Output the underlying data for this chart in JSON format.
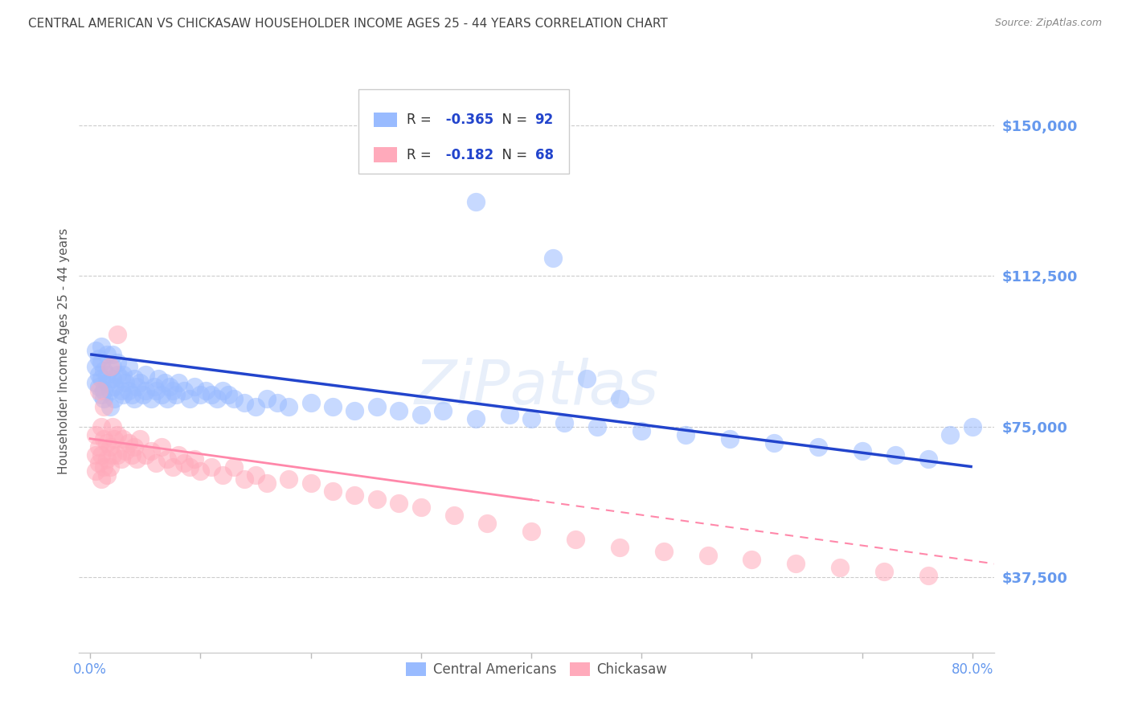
{
  "title": "CENTRAL AMERICAN VS CHICKASAW HOUSEHOLDER INCOME AGES 25 - 44 YEARS CORRELATION CHART",
  "source": "Source: ZipAtlas.com",
  "ylabel": "Householder Income Ages 25 - 44 years",
  "xlabel_ticks": [
    "0.0%",
    "",
    "",
    "",
    "",
    "",
    "",
    "",
    "80.0%"
  ],
  "xlabel_vals": [
    0.0,
    0.1,
    0.2,
    0.3,
    0.4,
    0.5,
    0.6,
    0.7,
    0.8
  ],
  "ytick_labels": [
    "$37,500",
    "$75,000",
    "$112,500",
    "$150,000"
  ],
  "ytick_vals": [
    37500,
    75000,
    112500,
    150000
  ],
  "ylim": [
    18750,
    168750
  ],
  "xlim": [
    -0.01,
    0.82
  ],
  "blue_color": "#99bbff",
  "pink_color": "#ffaabb",
  "blue_line_color": "#2244cc",
  "pink_line_color": "#ff88aa",
  "title_color": "#333333",
  "axis_label_color": "#6699ee",
  "legend_R1": "-0.365",
  "legend_N1": "92",
  "legend_R2": "-0.182",
  "legend_N2": "68",
  "blue_intercept": 93000,
  "blue_slope_per_unit": -35000,
  "pink_intercept": 72000,
  "pink_slope_per_unit": -38000,
  "blue_x": [
    0.005,
    0.005,
    0.005,
    0.008,
    0.008,
    0.008,
    0.01,
    0.01,
    0.01,
    0.01,
    0.012,
    0.012,
    0.012,
    0.015,
    0.015,
    0.015,
    0.018,
    0.018,
    0.02,
    0.02,
    0.02,
    0.022,
    0.022,
    0.025,
    0.025,
    0.028,
    0.028,
    0.03,
    0.03,
    0.032,
    0.035,
    0.035,
    0.038,
    0.04,
    0.04,
    0.042,
    0.045,
    0.048,
    0.05,
    0.05,
    0.055,
    0.058,
    0.06,
    0.062,
    0.065,
    0.068,
    0.07,
    0.072,
    0.075,
    0.078,
    0.08,
    0.085,
    0.09,
    0.095,
    0.1,
    0.105,
    0.11,
    0.115,
    0.12,
    0.125,
    0.13,
    0.14,
    0.15,
    0.16,
    0.17,
    0.18,
    0.2,
    0.22,
    0.24,
    0.26,
    0.28,
    0.3,
    0.32,
    0.35,
    0.38,
    0.4,
    0.43,
    0.46,
    0.5,
    0.54,
    0.58,
    0.62,
    0.66,
    0.7,
    0.73,
    0.76,
    0.78,
    0.8,
    0.35,
    0.42,
    0.45,
    0.48
  ],
  "blue_y": [
    90000,
    86000,
    94000,
    92000,
    85000,
    88000,
    87000,
    83000,
    91000,
    95000,
    84000,
    89000,
    82000,
    88000,
    93000,
    86000,
    84000,
    80000,
    90000,
    87000,
    93000,
    85000,
    82000,
    88000,
    91000,
    84000,
    87000,
    83000,
    88000,
    86000,
    84000,
    90000,
    83000,
    87000,
    82000,
    85000,
    86000,
    83000,
    88000,
    84000,
    82000,
    85000,
    84000,
    87000,
    83000,
    86000,
    82000,
    85000,
    84000,
    83000,
    86000,
    84000,
    82000,
    85000,
    83000,
    84000,
    83000,
    82000,
    84000,
    83000,
    82000,
    81000,
    80000,
    82000,
    81000,
    80000,
    81000,
    80000,
    79000,
    80000,
    79000,
    78000,
    79000,
    77000,
    78000,
    77000,
    76000,
    75000,
    74000,
    73000,
    72000,
    71000,
    70000,
    69000,
    68000,
    67000,
    73000,
    75000,
    131000,
    117000,
    87000,
    82000
  ],
  "pink_x": [
    0.005,
    0.005,
    0.005,
    0.008,
    0.008,
    0.01,
    0.01,
    0.01,
    0.012,
    0.012,
    0.015,
    0.015,
    0.015,
    0.018,
    0.018,
    0.02,
    0.02,
    0.022,
    0.025,
    0.025,
    0.028,
    0.03,
    0.032,
    0.035,
    0.038,
    0.04,
    0.042,
    0.045,
    0.05,
    0.055,
    0.06,
    0.065,
    0.07,
    0.075,
    0.08,
    0.085,
    0.09,
    0.095,
    0.1,
    0.11,
    0.12,
    0.13,
    0.14,
    0.15,
    0.16,
    0.18,
    0.2,
    0.22,
    0.24,
    0.26,
    0.28,
    0.3,
    0.33,
    0.36,
    0.4,
    0.44,
    0.48,
    0.52,
    0.56,
    0.6,
    0.64,
    0.68,
    0.72,
    0.76,
    0.008,
    0.012,
    0.018,
    0.025
  ],
  "pink_y": [
    68000,
    73000,
    64000,
    70000,
    66000,
    75000,
    68000,
    62000,
    72000,
    65000,
    71000,
    67000,
    63000,
    70000,
    65000,
    75000,
    68000,
    72000,
    68000,
    73000,
    67000,
    72000,
    69000,
    71000,
    68000,
    70000,
    67000,
    72000,
    68000,
    69000,
    66000,
    70000,
    67000,
    65000,
    68000,
    66000,
    65000,
    67000,
    64000,
    65000,
    63000,
    65000,
    62000,
    63000,
    61000,
    62000,
    61000,
    59000,
    58000,
    57000,
    56000,
    55000,
    53000,
    51000,
    49000,
    47000,
    45000,
    44000,
    43000,
    42000,
    41000,
    40000,
    39000,
    38000,
    84000,
    80000,
    90000,
    98000
  ],
  "watermark": "ZiPatlas"
}
